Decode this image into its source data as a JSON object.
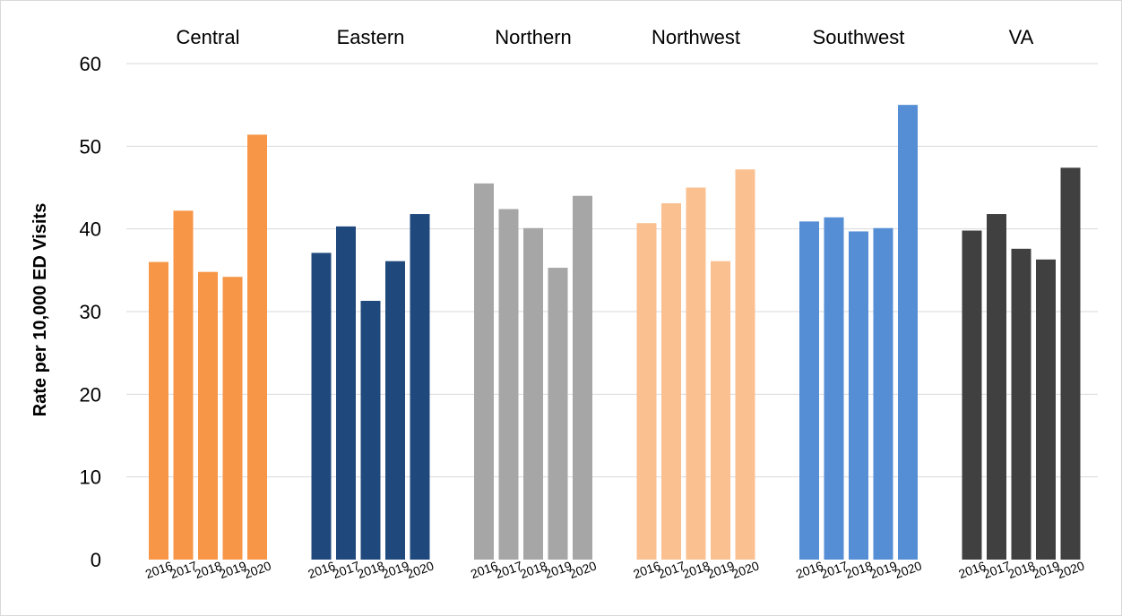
{
  "chart_data": {
    "type": "bar",
    "ylabel": "Rate per 10,000 ED Visits",
    "ylim": [
      0,
      60
    ],
    "yticks": [
      0,
      10,
      20,
      30,
      40,
      50,
      60
    ],
    "grid": true,
    "years": [
      "2016",
      "2017",
      "2018",
      "2019",
      "2020"
    ],
    "groups": [
      {
        "name": "Central",
        "color": "#f79646",
        "values": [
          36.0,
          42.2,
          34.8,
          34.2,
          51.4
        ]
      },
      {
        "name": "Eastern",
        "color": "#1f497d",
        "values": [
          37.1,
          40.3,
          31.3,
          36.1,
          41.8
        ]
      },
      {
        "name": "Northern",
        "color": "#a6a6a6",
        "values": [
          45.5,
          42.4,
          40.1,
          35.3,
          44.0
        ]
      },
      {
        "name": "Northwest",
        "color": "#fac090",
        "values": [
          40.7,
          43.1,
          45.0,
          36.1,
          47.2
        ]
      },
      {
        "name": "Southwest",
        "color": "#558ed5",
        "values": [
          40.9,
          41.4,
          39.7,
          40.1,
          55.0
        ]
      },
      {
        "name": "VA",
        "color": "#404040",
        "values": [
          39.8,
          41.8,
          37.6,
          36.3,
          47.4
        ]
      }
    ]
  }
}
